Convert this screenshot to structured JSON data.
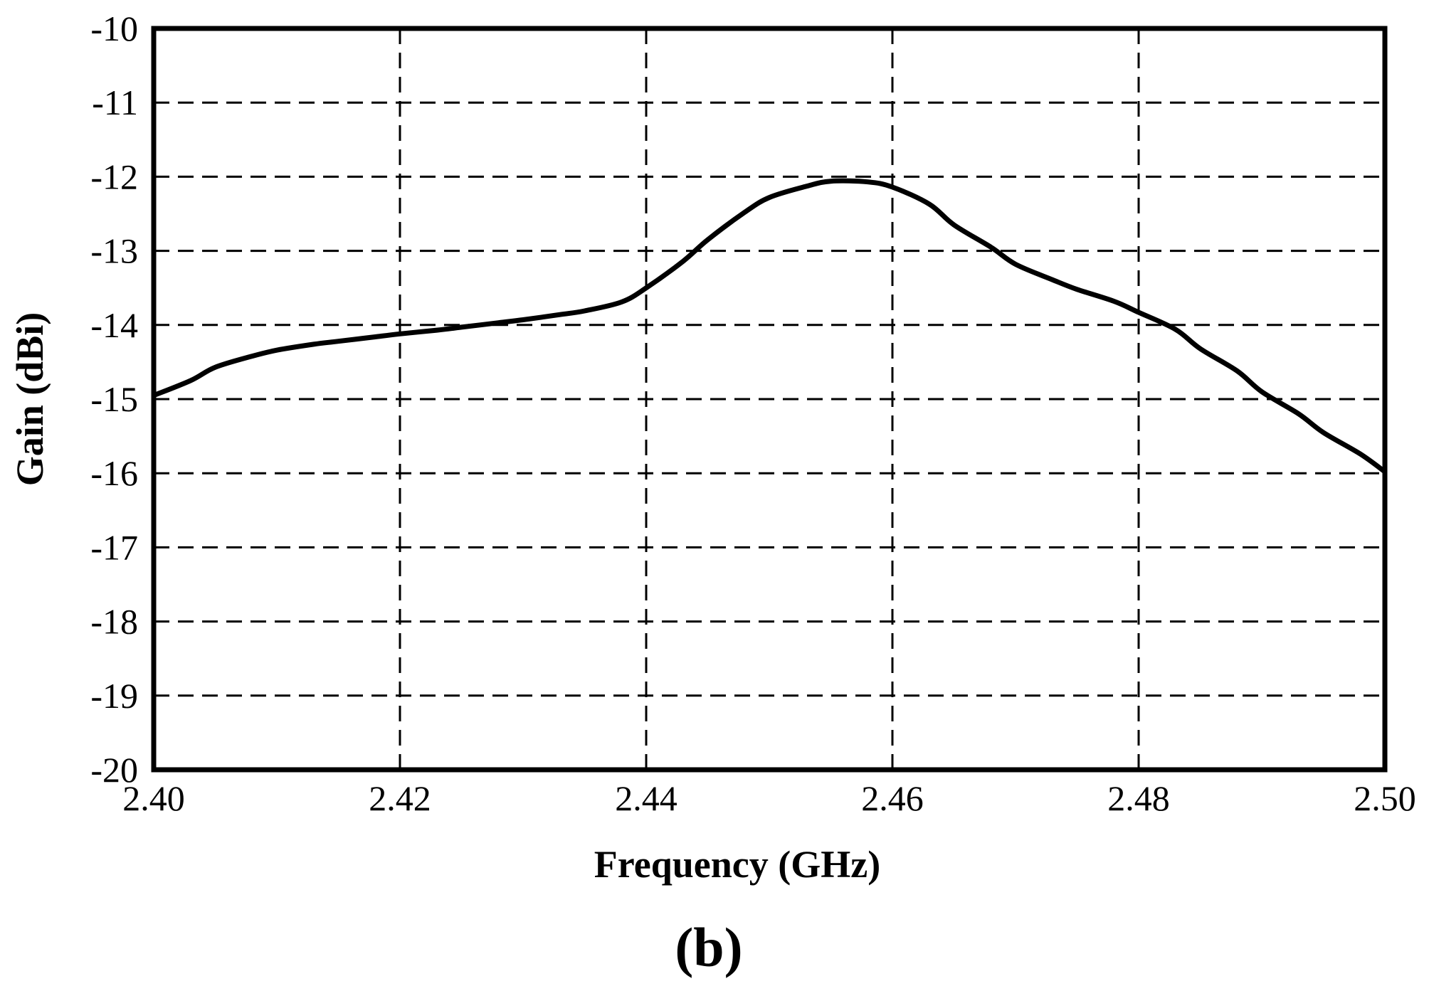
{
  "chart_data": {
    "type": "line",
    "title": "",
    "xlabel": "Frequency (GHz)",
    "ylabel": "Gain (dBi)",
    "caption": "(b)",
    "xlim": [
      2.4,
      2.5
    ],
    "ylim": [
      -20,
      -10
    ],
    "xticks": [
      "2.40",
      "2.42",
      "2.44",
      "2.46",
      "2.48",
      "2.50"
    ],
    "yticks": [
      "-10",
      "-11",
      "-12",
      "-13",
      "-14",
      "-15",
      "-16",
      "-17",
      "-18",
      "-19",
      "-20"
    ],
    "grid": true,
    "line_color": "#000000",
    "series": [
      {
        "x": [
          2.4,
          2.403,
          2.405,
          2.408,
          2.41,
          2.413,
          2.415,
          2.418,
          2.42,
          2.423,
          2.425,
          2.428,
          2.43,
          2.433,
          2.435,
          2.438,
          2.44,
          2.443,
          2.445,
          2.448,
          2.45,
          2.453,
          2.455,
          2.458,
          2.46,
          2.463,
          2.465,
          2.468,
          2.47,
          2.473,
          2.475,
          2.478,
          2.48,
          2.483,
          2.485,
          2.488,
          2.49,
          2.493,
          2.495,
          2.498,
          2.5
        ],
        "y": [
          -14.95,
          -14.75,
          -14.57,
          -14.42,
          -14.34,
          -14.26,
          -14.22,
          -14.16,
          -14.12,
          -14.07,
          -14.03,
          -13.97,
          -13.93,
          -13.86,
          -13.81,
          -13.69,
          -13.5,
          -13.14,
          -12.85,
          -12.48,
          -12.28,
          -12.13,
          -12.06,
          -12.07,
          -12.14,
          -12.37,
          -12.65,
          -12.95,
          -13.18,
          -13.39,
          -13.52,
          -13.68,
          -13.83,
          -14.06,
          -14.32,
          -14.62,
          -14.9,
          -15.2,
          -15.45,
          -15.74,
          -15.98
        ]
      }
    ]
  }
}
